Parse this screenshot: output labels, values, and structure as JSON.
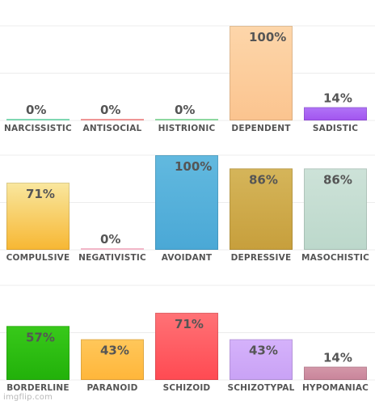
{
  "chart_data": {
    "type": "bar",
    "ylim": [
      0,
      100
    ],
    "grid": true,
    "value_suffix": "%",
    "panels": [
      {
        "categories": [
          "NARCISSISTIC",
          "ANTISOCIAL",
          "HISTRIONIC",
          "DEPENDENT",
          "SADISTIC"
        ],
        "values": [
          0,
          0,
          0,
          100,
          14
        ],
        "colors": [
          [
            "#7fd7b2",
            "#7fd7b2"
          ],
          [
            "#f4a0a0",
            "#e88989"
          ],
          [
            "#8ed8a0",
            "#8ed8a0"
          ],
          [
            "#fdd6aa",
            "#fbc48f"
          ],
          [
            "#b074f7",
            "#a254ef"
          ]
        ]
      },
      {
        "categories": [
          "COMPULSIVE",
          "NEGATIVISTIC",
          "AVOIDANT",
          "DEPRESSIVE",
          "MASOCHISTIC"
        ],
        "values": [
          71,
          0,
          100,
          86,
          86
        ],
        "colors": [
          [
            "#f9e79f",
            "#f7b733"
          ],
          [
            "#f2b6c8",
            "#f2b6c8"
          ],
          [
            "#62b9df",
            "#4aa8d6"
          ],
          [
            "#d5b55a",
            "#c79f3c"
          ],
          [
            "#cde2d8",
            "#bcd8cb"
          ]
        ]
      },
      {
        "categories": [
          "BORDERLINE",
          "PARANOID",
          "SCHIZOID",
          "SCHIZOTYPAL",
          "HYPOMANIAC"
        ],
        "values": [
          57,
          43,
          71,
          43,
          14
        ],
        "colors": [
          [
            "#38c91a",
            "#22b10a"
          ],
          [
            "#ffc75a",
            "#ffb63a"
          ],
          [
            "#ff7276",
            "#ff4a52"
          ],
          [
            "#d5b2fb",
            "#c9a2f5"
          ],
          [
            "#d498a9",
            "#c9849a"
          ]
        ]
      }
    ]
  },
  "watermark": "imgflip.com"
}
